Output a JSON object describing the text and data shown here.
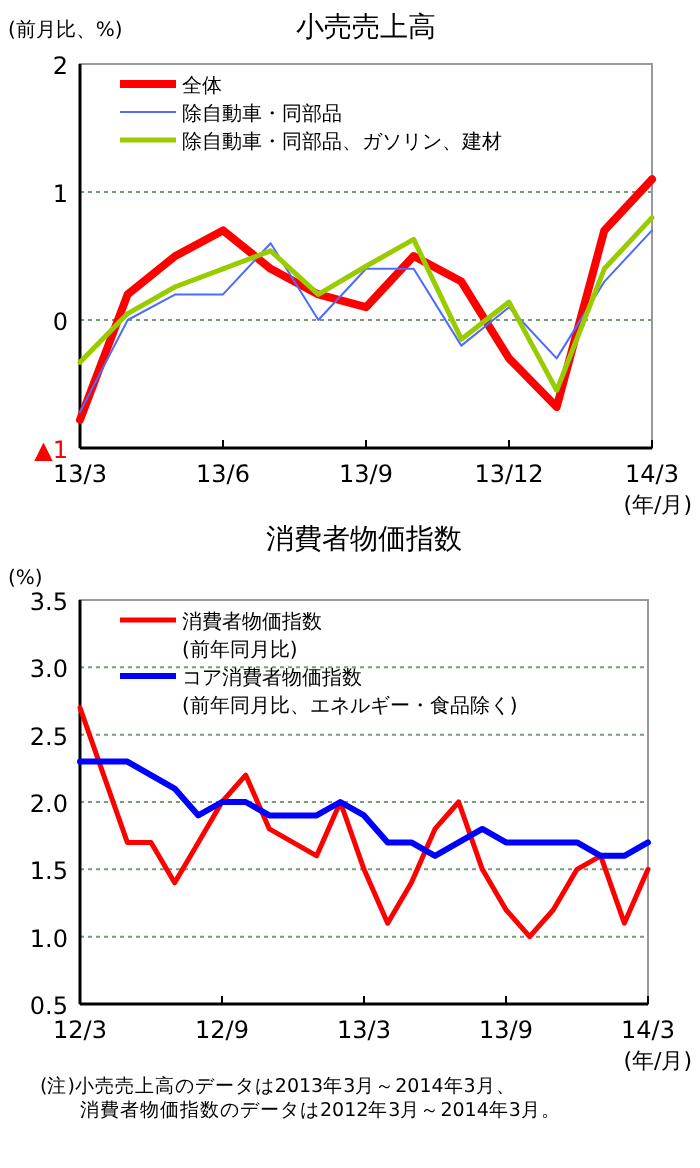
{
  "chart_data": [
    {
      "type": "line",
      "title": "小売売上高",
      "ylabel": "(前月比、%)",
      "xlabel": "(年/月)",
      "categories": [
        "13/3",
        null,
        null,
        "13/6",
        null,
        null,
        "13/9",
        null,
        null,
        "13/12",
        null,
        null,
        "14/3"
      ],
      "series": [
        {
          "name": "全体",
          "color": "#ff0000",
          "values": [
            -0.78,
            0.2,
            0.5,
            0.7,
            0.4,
            0.2,
            0.1,
            0.5,
            0.3,
            -0.3,
            -0.68,
            0.7,
            1.1
          ]
        },
        {
          "name": "除自動車・同部品",
          "color": "#4d6bff",
          "values": [
            -0.72,
            0.0,
            0.2,
            0.2,
            0.6,
            0.0,
            0.4,
            0.4,
            -0.2,
            0.1,
            -0.3,
            0.3,
            0.7
          ]
        },
        {
          "name": "除自動車・同部品、ガソリン、建材",
          "color": "#99cc00",
          "values": [
            -0.33,
            0.05,
            0.26,
            0.4,
            0.54,
            0.2,
            0.42,
            0.63,
            -0.15,
            0.14,
            -0.55,
            0.4,
            0.8
          ]
        }
      ],
      "ylim": [
        -1,
        2
      ],
      "yticks": [
        {
          "value": -1,
          "label": "▲1"
        },
        0,
        1,
        2
      ],
      "grid": "y",
      "legend": "top left"
    },
    {
      "type": "line",
      "title": "消費者物価指数",
      "ylabel": "(%)",
      "xlabel": "(年/月)",
      "categories": [
        "12/3",
        null,
        null,
        null,
        null,
        null,
        "12/9",
        null,
        null,
        null,
        null,
        null,
        "13/3",
        null,
        null,
        null,
        null,
        null,
        "13/9",
        null,
        null,
        null,
        null,
        null,
        "14/3"
      ],
      "series": [
        {
          "name": "消費者物価指数\n(前年同月比)",
          "color": "#ff0000",
          "values": [
            2.7,
            2.2,
            1.7,
            1.7,
            1.4,
            1.7,
            2.0,
            2.2,
            1.8,
            1.7,
            1.6,
            2.0,
            1.5,
            1.1,
            1.4,
            1.8,
            2.0,
            1.5,
            1.2,
            1.0,
            1.2,
            1.5,
            1.6,
            1.1,
            1.5
          ]
        },
        {
          "name": "コア消費者物価指数\n(前年同月比、エネルギー・食品除く)",
          "color": "#0000ff",
          "values": [
            2.3,
            2.3,
            2.3,
            2.2,
            2.1,
            1.9,
            2.0,
            2.0,
            1.9,
            1.9,
            1.9,
            2.0,
            1.9,
            1.7,
            1.7,
            1.6,
            1.7,
            1.8,
            1.7,
            1.7,
            1.7,
            1.7,
            1.6,
            1.6,
            1.7
          ]
        }
      ],
      "ylim": [
        0.5,
        3.5
      ],
      "yticks": [
        {
          "value": 0.5,
          "label": "0.5"
        },
        {
          "value": 1,
          "label": "1.0"
        },
        1.5,
        {
          "value": 2,
          "label": "2.0"
        },
        2.5,
        {
          "value": 3,
          "label": "3.0"
        },
        3.5
      ],
      "grid": "y",
      "legend": "top left",
      "annotations": [
        "(注)小売売上高のデータは2013年3月～2014年3月、",
        "　　消費者物価指数のデータは2012年3月～2014年3月。"
      ]
    }
  ]
}
